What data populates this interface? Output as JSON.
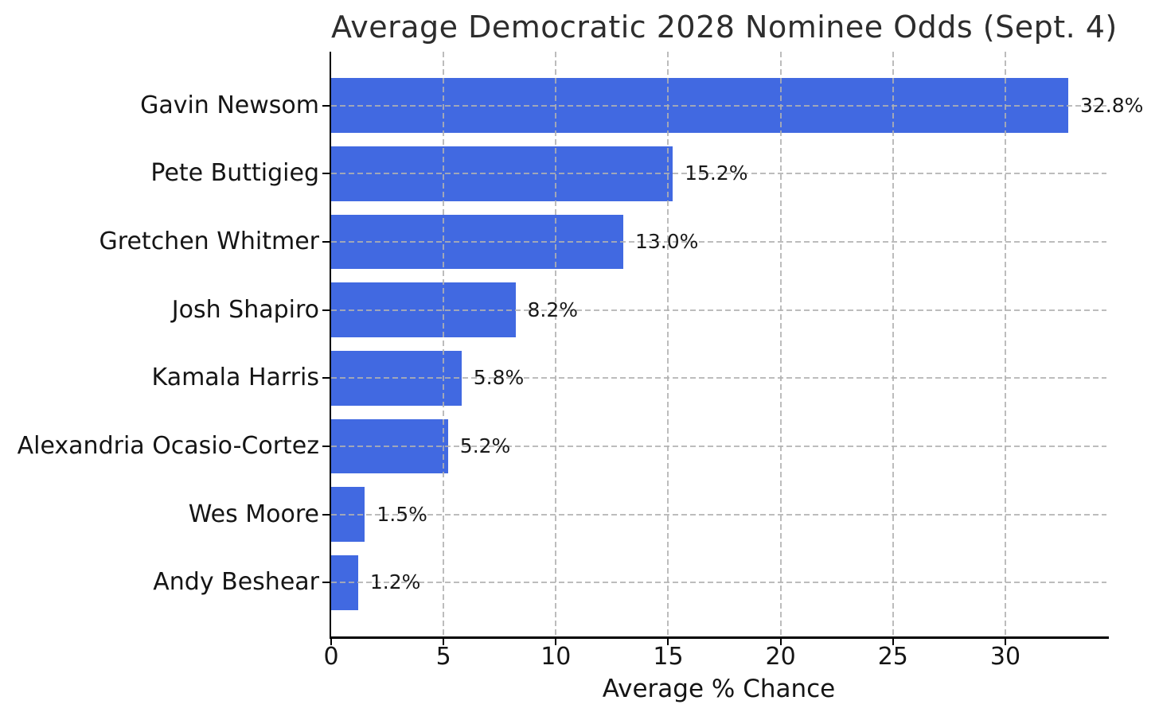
{
  "chart_data": {
    "type": "bar",
    "orientation": "horizontal",
    "title": "Average Democratic 2028 Nominee Odds (Sept. 4)",
    "xlabel": "Average % Chance",
    "ylabel": "",
    "categories": [
      "Gavin Newsom",
      "Pete Buttigieg",
      "Gretchen Whitmer",
      "Josh Shapiro",
      "Kamala Harris",
      "Alexandria Ocasio-Cortez",
      "Wes Moore",
      "Andy Beshear"
    ],
    "values": [
      32.8,
      15.2,
      13.0,
      8.2,
      5.8,
      5.2,
      1.5,
      1.2
    ],
    "value_labels": [
      "32.8%",
      "15.2%",
      "13.0%",
      "8.2%",
      "5.8%",
      "5.2%",
      "1.5%",
      "1.2%"
    ],
    "x_ticks": [
      0,
      5,
      10,
      15,
      20,
      25,
      30
    ],
    "xlim": [
      0,
      34.5
    ],
    "grid": true,
    "grid_style": "dashed",
    "grid_on_top_of_bars": true,
    "legend": false,
    "colors": {
      "bar": "#4169E1",
      "grid": "#c4c4c4",
      "axis": "#000000",
      "tick_text": "#151515",
      "value_text": "#1a1a1a",
      "title_text": "#2d2d2d",
      "background": "#ffffff"
    }
  }
}
